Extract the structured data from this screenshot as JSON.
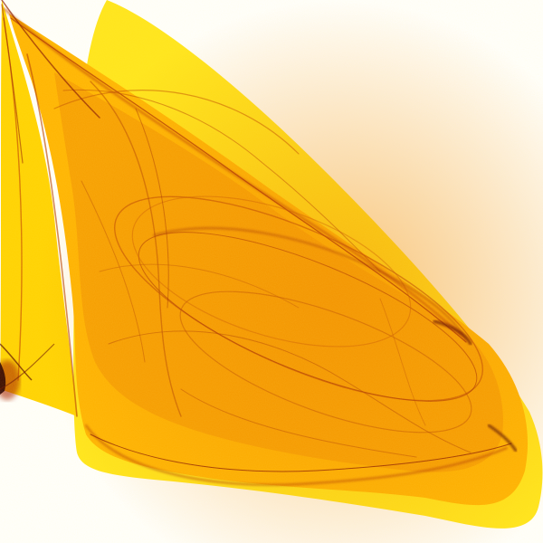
{
  "image": {
    "subject": "strange-attractor-render",
    "background_color": "#ffffff",
    "palette": {
      "light_yellow": "#ffee22",
      "yellow": "#ffd400",
      "amber": "#ffb000",
      "orange": "#f59000",
      "dark_orange": "#d85a00",
      "red": "#a01800",
      "near_black": "#2a0000"
    }
  }
}
